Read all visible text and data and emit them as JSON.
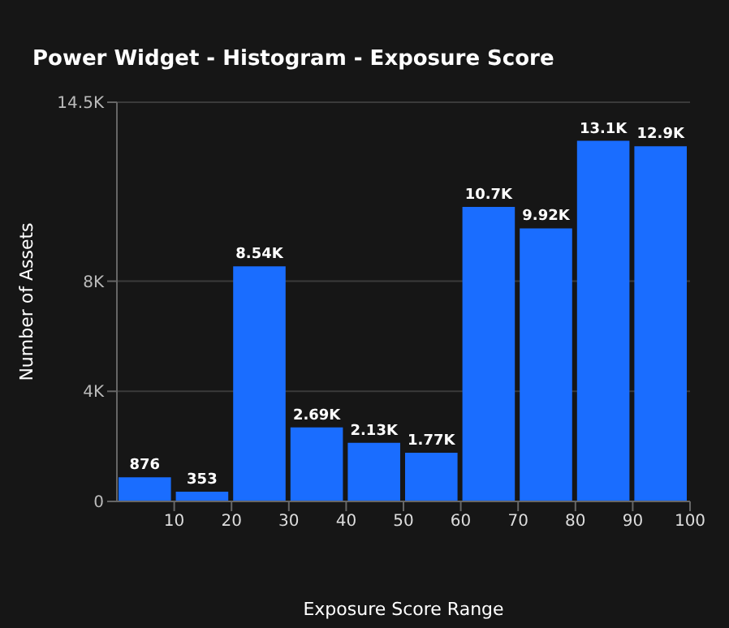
{
  "chart_data": {
    "type": "histogram",
    "title": "Power Widget - Histogram - Exposure Score",
    "xlabel": "Exposure Score Range",
    "ylabel": "Number of Assets",
    "bins": [
      0,
      10,
      20,
      30,
      40,
      50,
      60,
      70,
      80,
      90,
      100
    ],
    "values": [
      876,
      353,
      8540,
      2690,
      2130,
      1770,
      10700,
      9920,
      13100,
      12900
    ],
    "value_labels": [
      "876",
      "353",
      "8.54K",
      "2.69K",
      "2.13K",
      "1.77K",
      "10.7K",
      "9.92K",
      "13.1K",
      "12.9K"
    ],
    "color": "#1a6dff",
    "xlim": [
      0,
      100
    ],
    "xticks": [
      10,
      20,
      30,
      40,
      50,
      60,
      70,
      80,
      90,
      100
    ],
    "ylim": [
      0,
      14500
    ],
    "yticks": [
      0,
      {
        "value": 4000,
        "label": "4K"
      },
      {
        "value": 8000,
        "label": "8K"
      },
      {
        "value": 14500,
        "label": "14.5K"
      }
    ],
    "grid": "y",
    "legend": false
  }
}
